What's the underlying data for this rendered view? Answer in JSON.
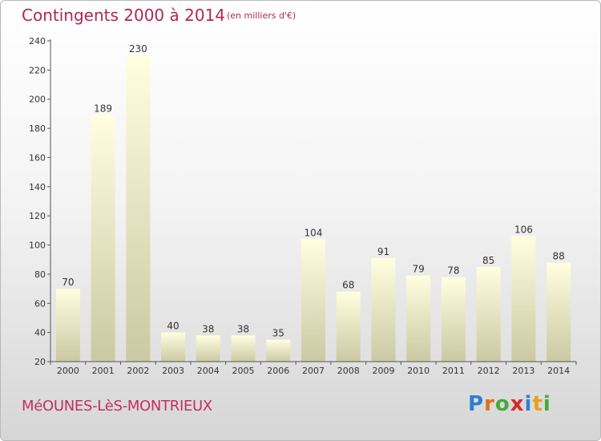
{
  "title": "Contingents 2000 à 2014",
  "subtitle": "(en milliers d'€)",
  "commune": "MéOUNES-LèS-MONTRIEUX",
  "logo": {
    "p": "P",
    "r": "r",
    "o": "o",
    "x": "x",
    "i": "i",
    "t": "t",
    "i2": "i"
  },
  "colors": {
    "title": "#b0275a",
    "bar_top": "#ffffe0",
    "bar_bottom": "#c9c9a3"
  },
  "chart_data": {
    "type": "bar",
    "title": "Contingents 2000 à 2014",
    "categories": [
      "2000",
      "2001",
      "2002",
      "2003",
      "2004",
      "2005",
      "2006",
      "2007",
      "2008",
      "2009",
      "2010",
      "2011",
      "2012",
      "2013",
      "2014"
    ],
    "values": [
      70,
      189,
      230,
      40,
      38,
      38,
      35,
      104,
      68,
      91,
      79,
      78,
      85,
      106,
      88
    ],
    "yticks": [
      20,
      40,
      60,
      80,
      100,
      120,
      140,
      160,
      180,
      200,
      220,
      240
    ],
    "ylim": [
      20,
      240
    ],
    "xlabel": "",
    "ylabel": "",
    "grid": false,
    "legend": "none"
  }
}
